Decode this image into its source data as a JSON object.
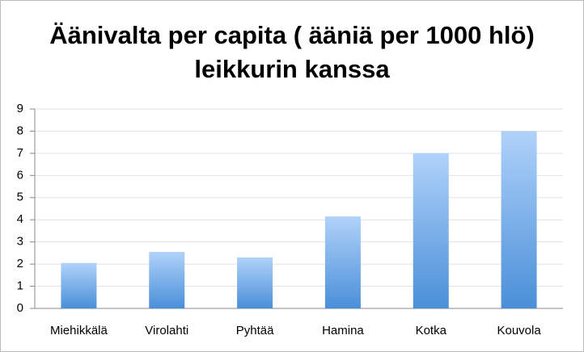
{
  "chart_data": {
    "type": "bar",
    "title": "Äänivalta per capita ( ääniä per 1000 hlö) leikkurin kanssa",
    "categories": [
      "Miehikkälä",
      "Virolahti",
      "Pyhtää",
      "Hamina",
      "Kotka",
      "Kouvola"
    ],
    "values": [
      2.05,
      2.55,
      2.3,
      4.15,
      7.0,
      8.0
    ],
    "ylim": [
      0,
      9
    ],
    "yticks": [
      0,
      1,
      2,
      3,
      4,
      5,
      6,
      7,
      8,
      9
    ],
    "grid": true
  }
}
